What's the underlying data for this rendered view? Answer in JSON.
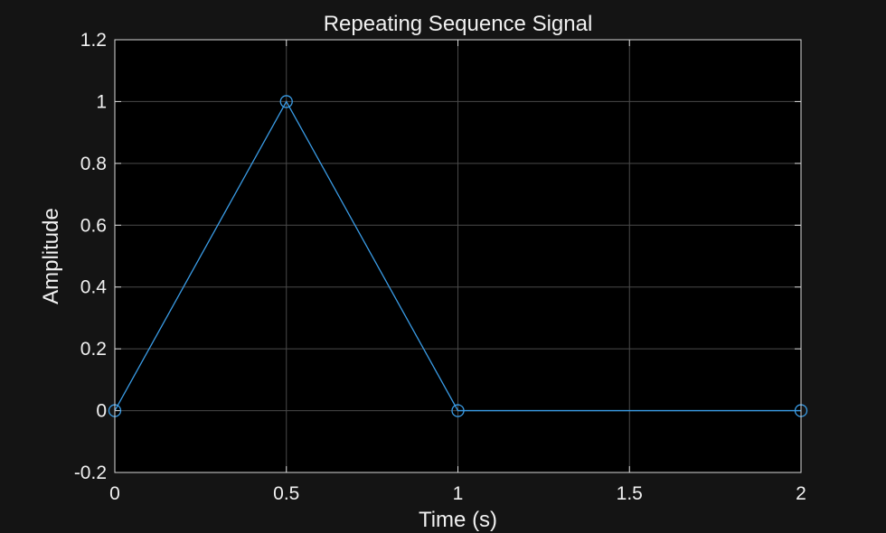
{
  "chart_data": {
    "type": "line",
    "title": "Repeating Sequence Signal",
    "xlabel": "Time (s)",
    "ylabel": "Amplitude",
    "xlim": [
      0,
      2
    ],
    "ylim": [
      -0.2,
      1.2
    ],
    "xticks": [
      0,
      0.5,
      1,
      1.5,
      2
    ],
    "xtick_labels": [
      "0",
      "0.5",
      "1",
      "1.5",
      "2"
    ],
    "yticks": [
      -0.2,
      0,
      0.2,
      0.4,
      0.6,
      0.8,
      1,
      1.2
    ],
    "ytick_labels": [
      "-0.2",
      "0",
      "0.2",
      "0.4",
      "0.6",
      "0.8",
      "1",
      "1.2"
    ],
    "grid": true,
    "legend": "none",
    "series": [
      {
        "x": [
          0,
          0.5,
          1,
          2
        ],
        "y": [
          0,
          1,
          0,
          0
        ],
        "color": "#3a9ce6",
        "marker": "circle"
      }
    ],
    "background_color": "#141414",
    "axes_color": "#000000",
    "text_color": "#f0f0f0"
  }
}
